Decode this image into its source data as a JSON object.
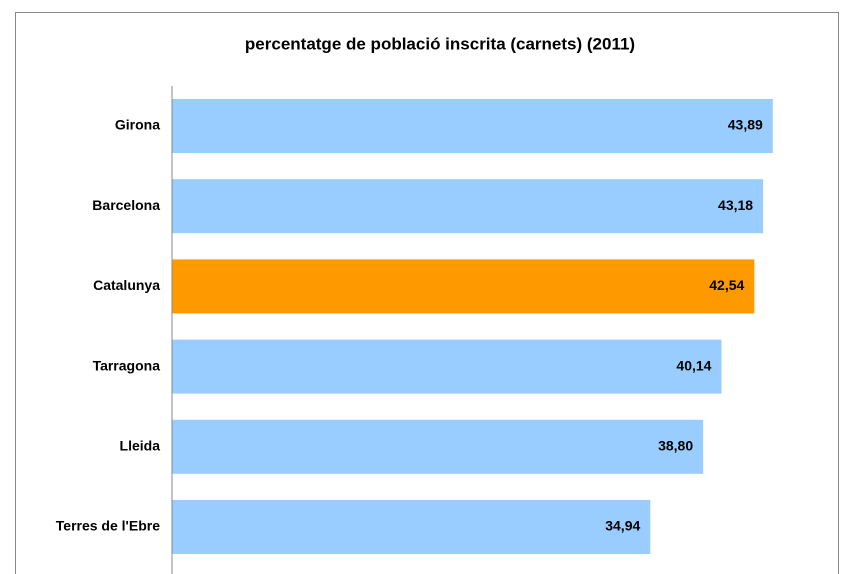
{
  "chart_data": {
    "type": "bar",
    "orientation": "horizontal",
    "title": "percentatge de població inscrita (carnets) (2011)",
    "categories": [
      "Girona",
      "Barcelona",
      "Catalunya",
      "Tarragona",
      "Lleida",
      "Terres de l'Ebre"
    ],
    "values": [
      43.89,
      43.18,
      42.54,
      40.14,
      38.8,
      34.94
    ],
    "value_labels": [
      "43,89",
      "43,18",
      "42,54",
      "40,14",
      "38,80",
      "34,94"
    ],
    "colors": [
      "#99ccff",
      "#99ccff",
      "#ff9900",
      "#99ccff",
      "#99ccff",
      "#99ccff"
    ],
    "xlim": [
      0,
      45
    ]
  }
}
